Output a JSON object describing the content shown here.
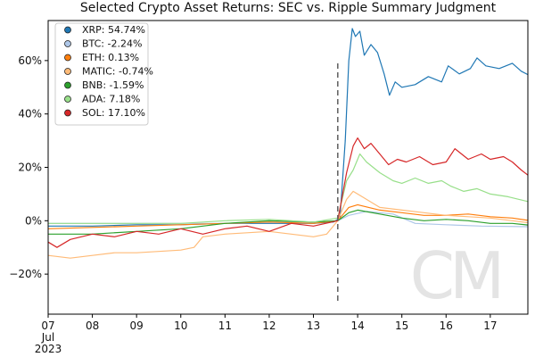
{
  "chart_data": {
    "type": "line",
    "title": "Selected Crypto Asset Returns: SEC vs. Ripple Summary Judgment",
    "xlabel": "",
    "ylabel": "",
    "x_range_days": [
      7.0,
      17.85
    ],
    "ylim": [
      -35,
      75
    ],
    "y_ticks": [
      {
        "value": 60,
        "label": "60%"
      },
      {
        "value": 40,
        "label": "40%"
      },
      {
        "value": 20,
        "label": "20%"
      },
      {
        "value": 0,
        "label": "0%"
      },
      {
        "value": -20,
        "label": "−20%"
      }
    ],
    "x_ticks": [
      {
        "value": 7,
        "label": "07"
      },
      {
        "value": 8,
        "label": "08"
      },
      {
        "value": 9,
        "label": "09"
      },
      {
        "value": 10,
        "label": "10"
      },
      {
        "value": 11,
        "label": "11"
      },
      {
        "value": 12,
        "label": "12"
      },
      {
        "value": 13,
        "label": "13"
      },
      {
        "value": 14,
        "label": "14"
      },
      {
        "value": 15,
        "label": "15"
      },
      {
        "value": 16,
        "label": "16"
      },
      {
        "value": 17,
        "label": "17"
      }
    ],
    "x_sublabels": [
      "Jul",
      "2023"
    ],
    "event_line": {
      "x": 13.55,
      "y_from": -30,
      "y_to": 60
    },
    "grid": false,
    "legend_position": "top-left",
    "watermark": "CM",
    "series": [
      {
        "name": "XRP: 54.74%",
        "color": "#1f77b4",
        "points": [
          [
            7.0,
            -2
          ],
          [
            8.0,
            -2
          ],
          [
            9.0,
            -1.5
          ],
          [
            10.0,
            -1.5
          ],
          [
            11.0,
            -1
          ],
          [
            12.0,
            -1
          ],
          [
            13.0,
            -1
          ],
          [
            13.45,
            -0.5
          ],
          [
            13.6,
            1
          ],
          [
            13.72,
            30
          ],
          [
            13.8,
            60
          ],
          [
            13.88,
            72
          ],
          [
            13.95,
            69
          ],
          [
            14.05,
            71
          ],
          [
            14.15,
            62
          ],
          [
            14.3,
            66
          ],
          [
            14.45,
            63
          ],
          [
            14.6,
            55
          ],
          [
            14.72,
            47
          ],
          [
            14.85,
            52
          ],
          [
            15.0,
            50
          ],
          [
            15.3,
            51
          ],
          [
            15.6,
            54
          ],
          [
            15.9,
            52
          ],
          [
            16.05,
            58
          ],
          [
            16.3,
            55
          ],
          [
            16.55,
            57
          ],
          [
            16.7,
            61
          ],
          [
            16.9,
            58
          ],
          [
            17.2,
            57
          ],
          [
            17.5,
            59
          ],
          [
            17.7,
            56
          ],
          [
            17.85,
            54.74
          ]
        ]
      },
      {
        "name": "BTC: -2.24%",
        "color": "#aec7e8",
        "points": [
          [
            7.0,
            -1
          ],
          [
            8.0,
            -1
          ],
          [
            9.0,
            -1
          ],
          [
            10.0,
            -1
          ],
          [
            11.0,
            -1
          ],
          [
            12.0,
            -0.5
          ],
          [
            13.0,
            -0.5
          ],
          [
            13.55,
            0
          ],
          [
            13.8,
            2
          ],
          [
            14.2,
            3.5
          ],
          [
            14.8,
            2.5
          ],
          [
            15.3,
            -1
          ],
          [
            16.0,
            -1.5
          ],
          [
            16.8,
            -2
          ],
          [
            17.85,
            -2.24
          ]
        ]
      },
      {
        "name": "ETH: 0.13%",
        "color": "#ff7f0e",
        "points": [
          [
            7.0,
            -3
          ],
          [
            8.0,
            -2.5
          ],
          [
            9.0,
            -2
          ],
          [
            10.0,
            -1.5
          ],
          [
            11.0,
            -1
          ],
          [
            12.0,
            -0.5
          ],
          [
            13.0,
            -1
          ],
          [
            13.55,
            0
          ],
          [
            13.8,
            5
          ],
          [
            14.0,
            6
          ],
          [
            14.5,
            4
          ],
          [
            15.0,
            3
          ],
          [
            15.5,
            2
          ],
          [
            16.0,
            2
          ],
          [
            16.5,
            2.5
          ],
          [
            17.0,
            1.5
          ],
          [
            17.5,
            1
          ],
          [
            17.85,
            0.13
          ]
        ]
      },
      {
        "name": "MATIC: -0.74%",
        "color": "#ffbb78",
        "points": [
          [
            7.0,
            -13
          ],
          [
            7.5,
            -14
          ],
          [
            8.0,
            -13
          ],
          [
            8.5,
            -12
          ],
          [
            9.0,
            -12
          ],
          [
            9.5,
            -11.5
          ],
          [
            10.0,
            -11
          ],
          [
            10.3,
            -10
          ],
          [
            10.5,
            -6
          ],
          [
            11.0,
            -5
          ],
          [
            12.0,
            -4
          ],
          [
            12.5,
            -5
          ],
          [
            13.0,
            -6
          ],
          [
            13.3,
            -5
          ],
          [
            13.55,
            0
          ],
          [
            13.75,
            8
          ],
          [
            13.9,
            11
          ],
          [
            14.1,
            9
          ],
          [
            14.5,
            5
          ],
          [
            15.0,
            4
          ],
          [
            15.5,
            3
          ],
          [
            16.0,
            2
          ],
          [
            16.5,
            1.5
          ],
          [
            17.0,
            1
          ],
          [
            17.5,
            0
          ],
          [
            17.85,
            -0.74
          ]
        ]
      },
      {
        "name": "BNB: -1.59%",
        "color": "#2ca02c",
        "points": [
          [
            7.0,
            -5
          ],
          [
            8.0,
            -5
          ],
          [
            9.0,
            -4
          ],
          [
            10.0,
            -3
          ],
          [
            10.5,
            -2
          ],
          [
            11.0,
            -1
          ],
          [
            12.0,
            0
          ],
          [
            13.0,
            -0.5
          ],
          [
            13.55,
            0
          ],
          [
            13.8,
            3
          ],
          [
            14.0,
            4
          ],
          [
            14.5,
            2.5
          ],
          [
            15.0,
            1
          ],
          [
            15.5,
            0
          ],
          [
            16.0,
            0.5
          ],
          [
            16.5,
            0
          ],
          [
            17.0,
            -1
          ],
          [
            17.5,
            -1
          ],
          [
            17.85,
            -1.59
          ]
        ]
      },
      {
        "name": "ADA: 7.18%",
        "color": "#98df8a",
        "points": [
          [
            7.0,
            -1
          ],
          [
            8.0,
            -1
          ],
          [
            9.0,
            -1
          ],
          [
            10.0,
            -1
          ],
          [
            11.0,
            0
          ],
          [
            12.0,
            0.5
          ],
          [
            13.0,
            -0.5
          ],
          [
            13.55,
            1
          ],
          [
            13.75,
            15
          ],
          [
            13.9,
            19
          ],
          [
            14.05,
            25
          ],
          [
            14.2,
            22
          ],
          [
            14.5,
            18
          ],
          [
            14.8,
            15
          ],
          [
            15.0,
            14
          ],
          [
            15.3,
            16
          ],
          [
            15.6,
            14
          ],
          [
            15.9,
            15
          ],
          [
            16.1,
            13
          ],
          [
            16.4,
            11
          ],
          [
            16.7,
            12
          ],
          [
            17.0,
            10
          ],
          [
            17.4,
            9
          ],
          [
            17.85,
            7.18
          ]
        ]
      },
      {
        "name": "SOL: 17.10%",
        "color": "#d62728",
        "points": [
          [
            7.0,
            -8
          ],
          [
            7.2,
            -10
          ],
          [
            7.5,
            -7
          ],
          [
            8.0,
            -5
          ],
          [
            8.5,
            -6
          ],
          [
            9.0,
            -4
          ],
          [
            9.5,
            -5
          ],
          [
            10.0,
            -3
          ],
          [
            10.5,
            -5
          ],
          [
            11.0,
            -3
          ],
          [
            11.5,
            -2
          ],
          [
            12.0,
            -4
          ],
          [
            12.5,
            -1
          ],
          [
            13.0,
            -2
          ],
          [
            13.55,
            0
          ],
          [
            13.75,
            18
          ],
          [
            13.9,
            28
          ],
          [
            14.0,
            31
          ],
          [
            14.15,
            27
          ],
          [
            14.3,
            29
          ],
          [
            14.5,
            25
          ],
          [
            14.7,
            21
          ],
          [
            14.9,
            23
          ],
          [
            15.1,
            22
          ],
          [
            15.4,
            24
          ],
          [
            15.7,
            21
          ],
          [
            16.0,
            22
          ],
          [
            16.2,
            27
          ],
          [
            16.5,
            23
          ],
          [
            16.8,
            25
          ],
          [
            17.0,
            23
          ],
          [
            17.3,
            24
          ],
          [
            17.5,
            22
          ],
          [
            17.7,
            19
          ],
          [
            17.85,
            17.1
          ]
        ]
      }
    ]
  }
}
